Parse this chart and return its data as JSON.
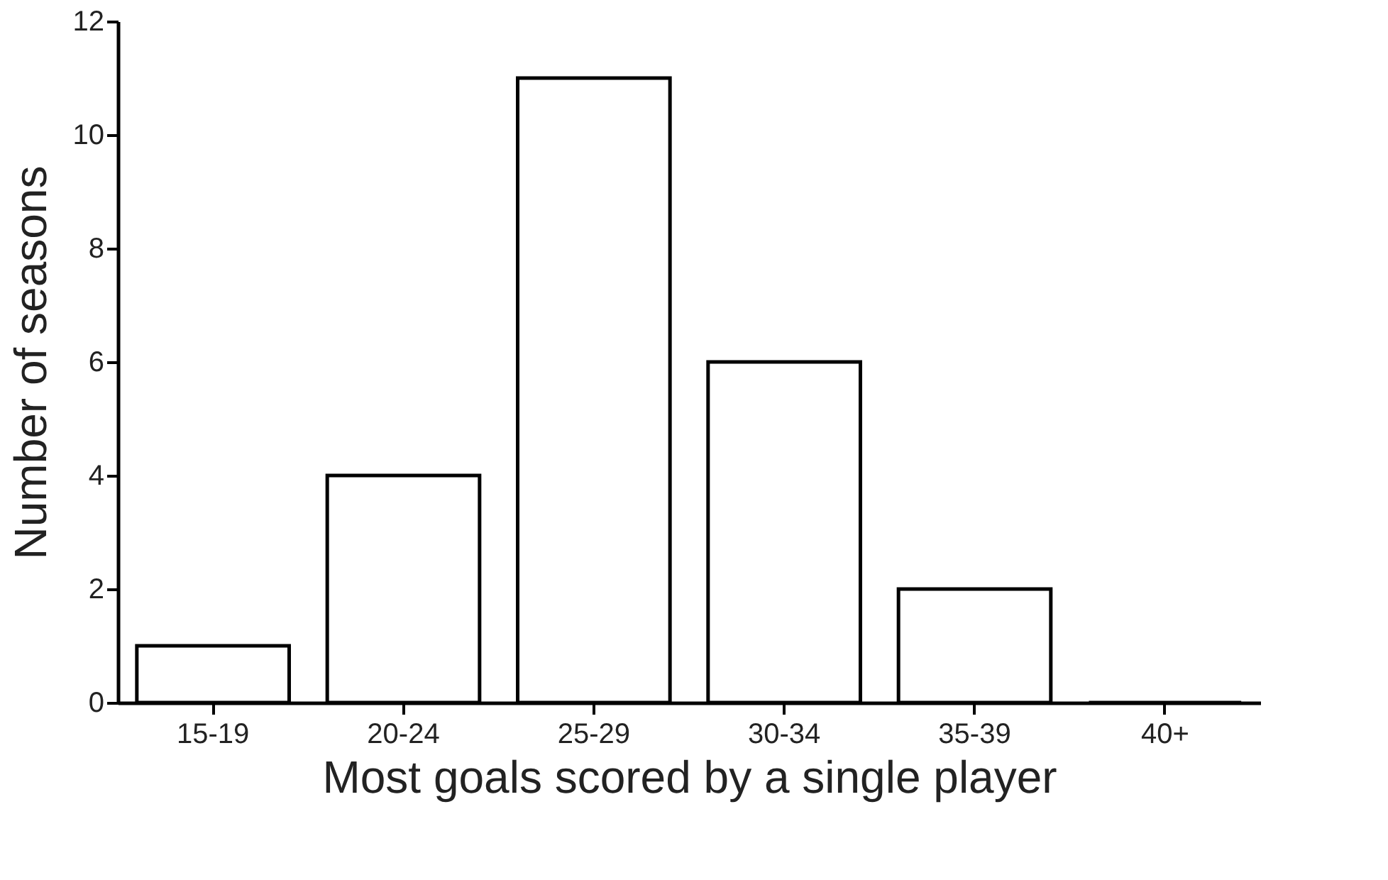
{
  "chart_data": {
    "type": "bar",
    "xlabel": "Most goals scored by a single player",
    "ylabel": "Number of seasons",
    "categories": [
      "15-19",
      "20-24",
      "25-29",
      "30-34",
      "35-39",
      "40+"
    ],
    "values": [
      1,
      4,
      11,
      6,
      2,
      0
    ],
    "color": "#ffffff",
    "ylim": [
      0,
      12
    ],
    "yticks": [
      0,
      2,
      4,
      6,
      8,
      10,
      12
    ],
    "grid": false
  }
}
